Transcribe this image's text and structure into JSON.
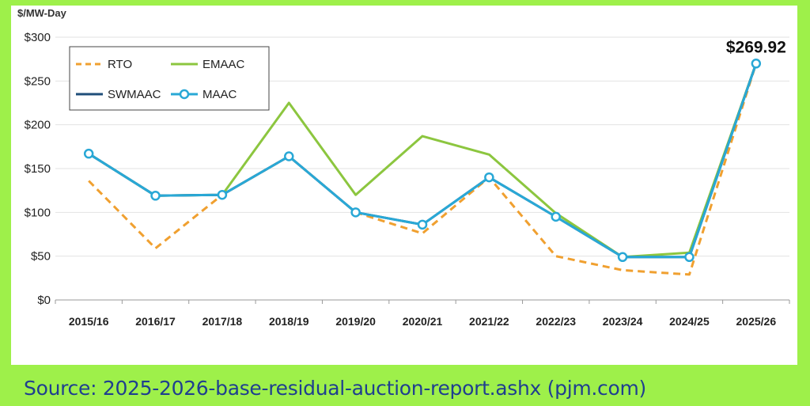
{
  "chart_data": {
    "type": "line",
    "title": "",
    "ylabel": "$/MW-Day",
    "xlabel": "",
    "ylim": [
      0,
      300
    ],
    "yticks": [
      0,
      50,
      100,
      150,
      200,
      250,
      300
    ],
    "ytick_labels": [
      "$0",
      "$50",
      "$100",
      "$150",
      "$200",
      "$250",
      "$300"
    ],
    "categories": [
      "2015/16",
      "2016/17",
      "2017/18",
      "2018/19",
      "2019/20",
      "2020/21",
      "2021/22",
      "2022/23",
      "2023/24",
      "2024/25",
      "2025/26"
    ],
    "series": [
      {
        "name": "RTO",
        "color": "#f0a030",
        "style": "dashed",
        "values": [
          136,
          59,
          120,
          164,
          100,
          76,
          140,
          50,
          34,
          29,
          269.92
        ]
      },
      {
        "name": "EMAAC",
        "color": "#8cc63f",
        "style": "solid",
        "values": [
          167,
          119,
          120,
          225,
          120,
          187,
          166,
          99,
          49,
          54,
          269.92
        ]
      },
      {
        "name": "SWMAAC",
        "color": "#1f4e79",
        "style": "solid",
        "values": [
          167,
          119,
          120,
          164,
          100,
          86,
          140,
          95,
          49,
          49,
          269.92
        ]
      },
      {
        "name": "MAAC",
        "color": "#29a8d6",
        "style": "solid-markers",
        "values": [
          167,
          119,
          120,
          164,
          100,
          86,
          140,
          95,
          49,
          49,
          269.92
        ]
      }
    ],
    "annotation": "$269.92",
    "legend_position": "top-left",
    "grid": true
  },
  "source_text": "Source: 2025-2026-base-residual-auction-report.ashx (pjm.com)"
}
